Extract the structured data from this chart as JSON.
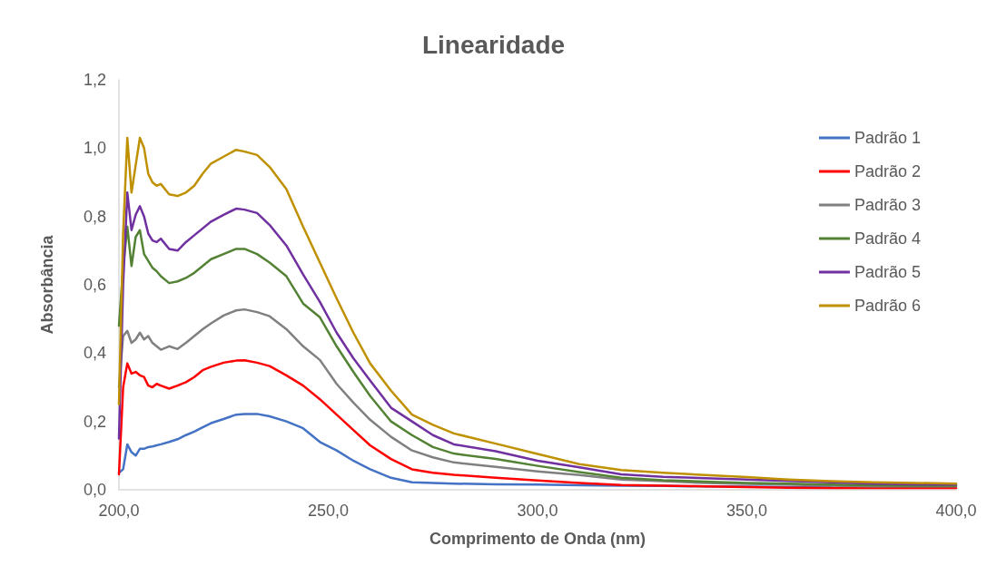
{
  "chart_data": {
    "type": "line",
    "title": "Linearidade",
    "xlabel": "Comprimento de Onda (nm)",
    "ylabel": "Absorbância",
    "x": [
      200,
      201,
      202,
      203,
      204,
      205,
      206,
      207,
      208,
      209,
      210,
      212,
      214,
      216,
      218,
      220,
      222,
      225,
      228,
      230,
      233,
      236,
      240,
      244,
      248,
      252,
      256,
      260,
      265,
      270,
      275,
      280,
      290,
      300,
      310,
      320,
      330,
      340,
      350,
      360,
      370,
      380,
      390,
      400
    ],
    "series": [
      {
        "name": "Padrão 1",
        "color": "#4472c4",
        "values": [
          0.05,
          0.06,
          0.133,
          0.11,
          0.1,
          0.12,
          0.12,
          0.125,
          0.127,
          0.13,
          0.133,
          0.14,
          0.148,
          0.16,
          0.17,
          0.183,
          0.195,
          0.207,
          0.22,
          0.222,
          0.222,
          0.215,
          0.2,
          0.18,
          0.14,
          0.115,
          0.085,
          0.06,
          0.035,
          0.022,
          0.02,
          0.018,
          0.016,
          0.015,
          0.013,
          0.012,
          0.011,
          0.01,
          0.009,
          0.008,
          0.008,
          null,
          null,
          null
        ]
      },
      {
        "name": "Padrão 2",
        "color": "#ff0000",
        "values": [
          0.045,
          0.3,
          0.37,
          0.34,
          0.345,
          0.335,
          0.33,
          0.305,
          0.3,
          0.31,
          0.305,
          0.296,
          0.305,
          0.315,
          0.33,
          0.35,
          0.36,
          0.372,
          0.378,
          0.379,
          0.372,
          0.362,
          0.335,
          0.305,
          0.265,
          0.22,
          0.175,
          0.13,
          0.09,
          0.06,
          0.05,
          0.044,
          0.035,
          0.027,
          0.02,
          0.014,
          0.012,
          0.01,
          0.008,
          0.006,
          0.005,
          0.005,
          0.005,
          0.005
        ]
      },
      {
        "name": "Padrão 3",
        "color": "#808080",
        "values": [
          0.3,
          0.45,
          0.465,
          0.43,
          0.44,
          0.46,
          0.44,
          0.45,
          0.43,
          0.42,
          0.41,
          0.42,
          0.412,
          0.43,
          0.45,
          0.47,
          0.487,
          0.51,
          0.525,
          0.528,
          0.52,
          0.508,
          0.47,
          0.42,
          0.38,
          0.31,
          0.255,
          0.205,
          0.155,
          0.115,
          0.095,
          0.08,
          0.067,
          0.054,
          0.043,
          0.03,
          0.025,
          0.02,
          0.017,
          0.015,
          0.012,
          0.01,
          0.01,
          0.01
        ]
      },
      {
        "name": "Padrão 4",
        "color": "#548235",
        "values": [
          0.48,
          0.65,
          0.77,
          0.655,
          0.74,
          0.76,
          0.69,
          0.67,
          0.65,
          0.64,
          0.625,
          0.605,
          0.61,
          0.62,
          0.635,
          0.655,
          0.675,
          0.69,
          0.705,
          0.705,
          0.69,
          0.665,
          0.625,
          0.545,
          0.505,
          0.42,
          0.345,
          0.275,
          0.2,
          0.16,
          0.125,
          0.106,
          0.09,
          0.07,
          0.052,
          0.035,
          0.028,
          0.024,
          0.02,
          0.018,
          0.015,
          0.013,
          0.012,
          0.012
        ]
      },
      {
        "name": "Padrão 5",
        "color": "#7030a0",
        "values": [
          0.15,
          0.6,
          0.87,
          0.76,
          0.805,
          0.83,
          0.8,
          0.75,
          0.73,
          0.725,
          0.735,
          0.705,
          0.7,
          0.725,
          0.745,
          0.765,
          0.785,
          0.805,
          0.823,
          0.82,
          0.81,
          0.775,
          0.715,
          0.63,
          0.55,
          0.46,
          0.385,
          0.32,
          0.24,
          0.2,
          0.16,
          0.133,
          0.113,
          0.085,
          0.066,
          0.045,
          0.038,
          0.034,
          0.03,
          0.026,
          0.022,
          0.018,
          0.016,
          0.015
        ]
      },
      {
        "name": "Padrão 6",
        "color": "#bf9000",
        "values": [
          0.25,
          0.75,
          1.03,
          0.87,
          0.95,
          1.03,
          1.0,
          0.925,
          0.9,
          0.89,
          0.895,
          0.865,
          0.86,
          0.87,
          0.89,
          0.925,
          0.955,
          0.975,
          0.995,
          0.99,
          0.98,
          0.945,
          0.88,
          0.77,
          0.665,
          0.56,
          0.46,
          0.37,
          0.29,
          0.22,
          0.19,
          0.165,
          0.135,
          0.105,
          0.075,
          0.058,
          0.05,
          0.043,
          0.037,
          0.03,
          0.025,
          0.022,
          0.02,
          0.018
        ]
      }
    ],
    "xlim": [
      200,
      400
    ],
    "xticks": [
      {
        "value": 200,
        "label": "200,0"
      },
      {
        "value": 250,
        "label": "250,0"
      },
      {
        "value": 300,
        "label": "300,0"
      },
      {
        "value": 350,
        "label": "350,0"
      },
      {
        "value": 400,
        "label": "400,0"
      }
    ],
    "ylim": [
      0,
      1.2
    ],
    "yticks": [
      {
        "value": 0,
        "label": "0,0"
      },
      {
        "value": 0.2,
        "label": "0,2"
      },
      {
        "value": 0.4,
        "label": "0,4"
      },
      {
        "value": 0.6,
        "label": "0,6"
      },
      {
        "value": 0.8,
        "label": "0,8"
      },
      {
        "value": 1.0,
        "label": "1,0"
      },
      {
        "value": 1.2,
        "label": "1,2"
      }
    ],
    "grid": false,
    "legend": "top right",
    "marker": "none",
    "line_style": "solid"
  }
}
